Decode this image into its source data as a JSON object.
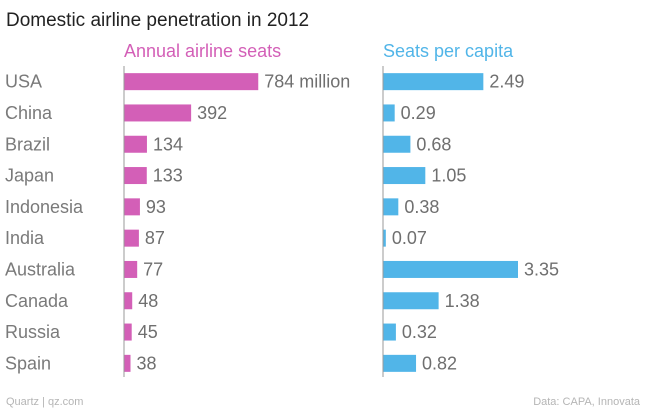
{
  "chart_data": {
    "type": "bar",
    "title": "Domestic airline penetration in 2012",
    "categories": [
      "USA",
      "China",
      "Brazil",
      "Japan",
      "Indonesia",
      "India",
      "Australia",
      "Canada",
      "Russia",
      "Spain"
    ],
    "series": [
      {
        "name": "Annual airline seats",
        "color": "#d35fb7",
        "values": [
          784,
          392,
          134,
          133,
          93,
          87,
          77,
          48,
          45,
          38
        ],
        "labels": [
          "784 million",
          "392",
          "134",
          "133",
          "93",
          "87",
          "77",
          "48",
          "45",
          "38"
        ],
        "xlim": [
          0,
          800
        ]
      },
      {
        "name": "Seats per capita",
        "color": "#51b5e8",
        "values": [
          2.49,
          0.29,
          0.68,
          1.05,
          0.38,
          0.07,
          3.35,
          1.38,
          0.32,
          0.82
        ],
        "labels": [
          "2.49",
          "0.29",
          "0.68",
          "1.05",
          "0.38",
          "0.07",
          "3.35",
          "1.38",
          "0.32",
          "0.82"
        ],
        "xlim": [
          0,
          3.35
        ]
      }
    ],
    "source": "Data: CAPA, Innovata",
    "credit": "Quartz | qz.com"
  }
}
